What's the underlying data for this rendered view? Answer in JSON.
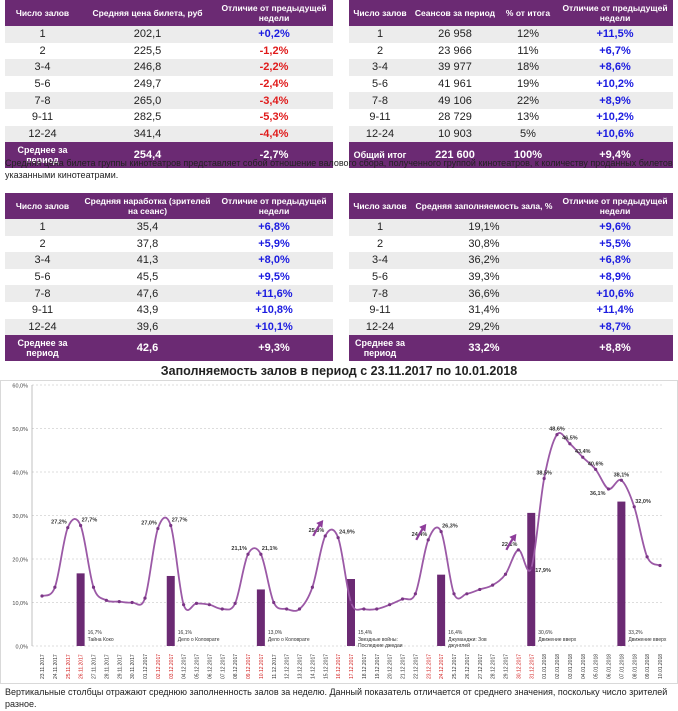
{
  "table1": {
    "headers": [
      "Число залов",
      "Средняя цена билета, руб",
      "Отличие от предыдущей недели"
    ],
    "rows": [
      [
        "1",
        "202,1",
        "+0,2%"
      ],
      [
        "2",
        "225,5",
        "-1,2%"
      ],
      [
        "3-4",
        "246,8",
        "-2,2%"
      ],
      [
        "5-6",
        "249,7",
        "-2,4%"
      ],
      [
        "7-8",
        "265,0",
        "-3,4%"
      ],
      [
        "9-11",
        "282,5",
        "-5,3%"
      ],
      [
        "12-24",
        "341,4",
        "-4,4%"
      ]
    ],
    "total": [
      "Среднее за период",
      "254,4",
      "-2,7%"
    ]
  },
  "table2": {
    "headers": [
      "Число залов",
      "Сеансов за период",
      "% от итога",
      "Отличие от предыдущей недели"
    ],
    "rows": [
      [
        "1",
        "26 958",
        "12%",
        "+11,5%"
      ],
      [
        "2",
        "23 966",
        "11%",
        "+6,7%"
      ],
      [
        "3-4",
        "39 977",
        "18%",
        "+8,6%"
      ],
      [
        "5-6",
        "41 961",
        "19%",
        "+10,2%"
      ],
      [
        "7-8",
        "49 106",
        "22%",
        "+8,9%"
      ],
      [
        "9-11",
        "28 729",
        "13%",
        "+10,2%"
      ],
      [
        "12-24",
        "10 903",
        "5%",
        "+10,6%"
      ]
    ],
    "total": [
      "Общий итог",
      "221 600",
      "100%",
      "+9,4%"
    ]
  },
  "note1": "Средняя цена билета группы кинотеатров представляет собой отношение валового сбора, полученного группой кинотеатров, к количеству проданных билетов указанными кинотеатрами.",
  "table3": {
    "headers": [
      "Число залов",
      "Средняя наработка (зрителей на сеанс)",
      "Отличие от предыдущей недели"
    ],
    "rows": [
      [
        "1",
        "35,4",
        "+6,8%"
      ],
      [
        "2",
        "37,8",
        "+5,9%"
      ],
      [
        "3-4",
        "41,3",
        "+8,0%"
      ],
      [
        "5-6",
        "45,5",
        "+9,5%"
      ],
      [
        "7-8",
        "47,6",
        "+11,6%"
      ],
      [
        "9-11",
        "43,9",
        "+10,8%"
      ],
      [
        "12-24",
        "39,6",
        "+10,1%"
      ]
    ],
    "total": [
      "Среднее за период",
      "42,6",
      "+9,3%"
    ]
  },
  "table4": {
    "headers": [
      "Число залов",
      "Средняя заполняемость зала, %",
      "Отличие от предыдущей недели"
    ],
    "rows": [
      [
        "1",
        "19,1%",
        "+9,6%"
      ],
      [
        "2",
        "30,8%",
        "+5,5%"
      ],
      [
        "3-4",
        "36,2%",
        "+6,8%"
      ],
      [
        "5-6",
        "39,3%",
        "+8,9%"
      ],
      [
        "7-8",
        "36,6%",
        "+10,6%"
      ],
      [
        "9-11",
        "31,4%",
        "+11,4%"
      ],
      [
        "12-24",
        "29,2%",
        "+8,7%"
      ]
    ],
    "total": [
      "Среднее за период",
      "33,2%",
      "+8,8%"
    ]
  },
  "chart_title": "Заполняемость залов в период с 23.11.2017 по 10.01.2018",
  "note2": "Вертикальные столбцы отражают среднюю заполненность залов за неделю. Данный показатель отличается от среднего значения, поскольку число зрителей разное.",
  "chart_data": {
    "type": "line",
    "ylim": [
      0,
      60
    ],
    "yticks": [
      "0,0%",
      "10,0%",
      "20,0%",
      "30,0%",
      "40,0%",
      "50,0%",
      "60,0%"
    ],
    "dates": [
      "23.11.2017",
      "24.11.2017",
      "25.11.2017",
      "26.11.2017",
      "27.11.2017",
      "28.11.2017",
      "29.11.2017",
      "30.11.2017",
      "01.12.2017",
      "02.12.2017",
      "03.12.2017",
      "04.12.2017",
      "05.12.2017",
      "06.12.2017",
      "07.12.2017",
      "08.12.2017",
      "09.12.2017",
      "10.12.2017",
      "11.12.2017",
      "12.12.2017",
      "13.12.2017",
      "14.12.2017",
      "15.12.2017",
      "16.12.2017",
      "17.12.2017",
      "18.12.2017",
      "19.12.2017",
      "20.12.2017",
      "21.12.2017",
      "22.12.2017",
      "23.12.2017",
      "24.12.2017",
      "25.12.2017",
      "26.12.2017",
      "27.12.2017",
      "28.12.2017",
      "29.12.2017",
      "30.12.2017",
      "31.12.2017",
      "01.01.2018",
      "02.01.2018",
      "03.01.2018",
      "04.01.2018",
      "05.01.2018",
      "06.01.2018",
      "07.01.2018",
      "08.01.2018",
      "09.01.2018",
      "10.01.2018"
    ],
    "red_dates": [
      2,
      3,
      9,
      10,
      16,
      17,
      23,
      24,
      30,
      31,
      37,
      38
    ],
    "values": [
      11.5,
      13.5,
      27.2,
      27.7,
      13.5,
      10.5,
      10.2,
      10.0,
      11.0,
      27.0,
      27.7,
      9.5,
      9.8,
      9.5,
      8.5,
      9.8,
      21.1,
      21.1,
      10.0,
      8.5,
      8.5,
      13.5,
      25.3,
      24.9,
      10.0,
      8.5,
      8.5,
      9.5,
      10.8,
      12.0,
      24.4,
      26.3,
      12.0,
      12.0,
      13.0,
      14.0,
      16.5,
      22.1,
      17.9,
      38.5,
      48.6,
      46.5,
      43.4,
      40.6,
      36.1,
      38.1,
      32.0,
      20.5,
      18.5
    ],
    "point_labels": [
      {
        "i": 2,
        "text": "27,2%"
      },
      {
        "i": 3,
        "text": "27,7%"
      },
      {
        "i": 9,
        "text": "27,0%"
      },
      {
        "i": 10,
        "text": "27,7%"
      },
      {
        "i": 16,
        "text": "21,1%"
      },
      {
        "i": 17,
        "text": "21,1%"
      },
      {
        "i": 22,
        "text": "25,3%"
      },
      {
        "i": 23,
        "text": "24,9%"
      },
      {
        "i": 30,
        "text": "24,4%"
      },
      {
        "i": 31,
        "text": "26,3%"
      },
      {
        "i": 37,
        "text": "22,1%"
      },
      {
        "i": 38,
        "text": "17,9%"
      },
      {
        "i": 39,
        "text": "38,5%"
      },
      {
        "i": 40,
        "text": "48,6%"
      },
      {
        "i": 41,
        "text": "46,5%"
      },
      {
        "i": 42,
        "text": "43,4%"
      },
      {
        "i": 43,
        "text": "40,6%"
      },
      {
        "i": 44,
        "text": "36,1%"
      },
      {
        "i": 45,
        "text": "38,1%"
      },
      {
        "i": 46,
        "text": "32,0%"
      }
    ],
    "bars": [
      {
        "i": 3,
        "value": 16.7,
        "label": "16,7%",
        "film": "Тайна Коко"
      },
      {
        "i": 10,
        "value": 16.1,
        "label": "16,1%",
        "film": "Дело о Коловрате"
      },
      {
        "i": 17,
        "value": 13.0,
        "label": "13,0%",
        "film": "Дело о Коловрате"
      },
      {
        "i": 24,
        "value": 15.4,
        "label": "15,4%",
        "film": "Звездные войны: Последние джедаи"
      },
      {
        "i": 31,
        "value": 16.4,
        "label": "16,4%",
        "film": "Джуманджи: Зов джунглей"
      },
      {
        "i": 38,
        "value": 30.6,
        "label": "30,6%",
        "film": "Движение вверх"
      },
      {
        "i": 45,
        "value": 33.2,
        "label": "33,2%",
        "film": "Движение вверх"
      }
    ],
    "arrows": [
      22,
      30,
      37
    ]
  }
}
